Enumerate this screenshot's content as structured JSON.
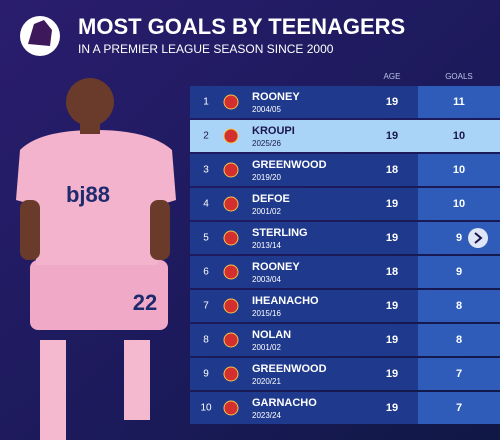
{
  "header": {
    "title": "MOST GOALS BY TEENAGERS",
    "subtitle": "IN A PREMIER LEAGUE SEASON SINCE 2000"
  },
  "table": {
    "columns": [
      "AGE",
      "GOALS"
    ],
    "rows": [
      {
        "rank": "1",
        "name": "ROONEY",
        "season": "2004/05",
        "age": 19,
        "goals": 11
      },
      {
        "rank": "2",
        "name": "KROUPI",
        "season": "2025/26",
        "age": 19,
        "goals": 10
      },
      {
        "rank": "3",
        "name": "GREENWOOD",
        "season": "2019/20",
        "age": 18,
        "goals": 10
      },
      {
        "rank": "4",
        "name": "DEFOE",
        "season": "2001/02",
        "age": 19,
        "goals": 10
      },
      {
        "rank": "5",
        "name": "STERLING",
        "season": "2013/14",
        "age": 19,
        "goals": 9
      },
      {
        "rank": "6",
        "name": "ROONEY",
        "season": "2003/04",
        "age": 18,
        "goals": 9
      },
      {
        "rank": "7",
        "name": "IHEANACHO",
        "season": "2015/16",
        "age": 19,
        "goals": 8
      },
      {
        "rank": "8",
        "name": "NOLAN",
        "season": "2001/02",
        "age": 19,
        "goals": 8
      },
      {
        "rank": "9",
        "name": "GREENWOOD",
        "season": "2020/21",
        "age": 19,
        "goals": 7
      },
      {
        "rank": "10",
        "name": "GARNACHO",
        "season": "2023/24",
        "age": 19,
        "goals": 7
      }
    ]
  },
  "player": {
    "sponsor": "bj88",
    "number": "22"
  }
}
